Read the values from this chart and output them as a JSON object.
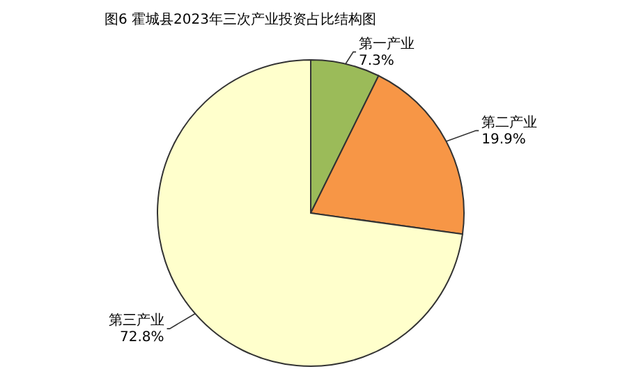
{
  "chart_data": {
    "type": "pie",
    "title": "图6  霍城县2023年三次产业投资占比结构图",
    "categories": [
      "第一产业",
      "第二产业",
      "第三产业"
    ],
    "values": [
      7.3,
      19.9,
      72.8
    ],
    "value_labels": [
      "7.3%",
      "19.9%",
      "72.8%"
    ],
    "colors": [
      "#9bbb59",
      "#f79646",
      "#ffffcc"
    ]
  }
}
